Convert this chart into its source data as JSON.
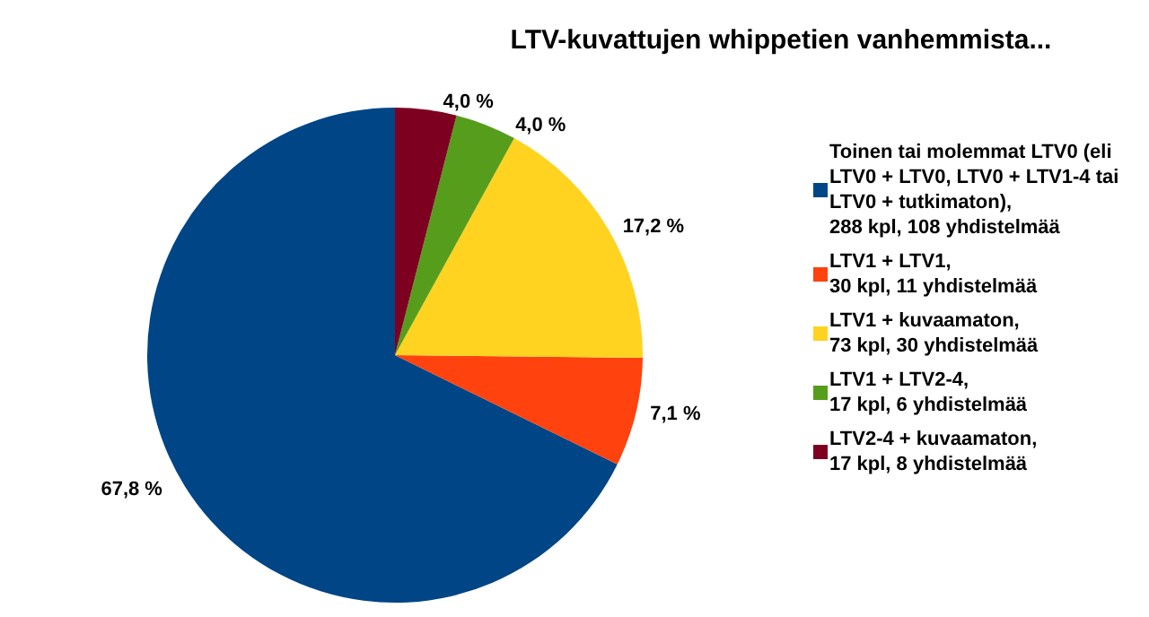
{
  "chart_data": {
    "type": "pie",
    "title": "LTV-kuvattujen whippetien vanhemmista...",
    "categories": [
      "Toinen tai molemmat LTV0 (eli\nLTV0 + LTV0, LTV0 + LTV1-4 tai\nLTV0 + tutkimaton),\n288 kpl, 108 yhdistelmää",
      "LTV1 + LTV1,\n30 kpl, 11 yhdistelmää",
      "LTV1 + kuvaamaton,\n73 kpl, 30 yhdistelmää",
      "LTV1 + LTV2-4,\n17 kpl, 6 yhdistelmää",
      "LTV2-4 + kuvaamaton,\n17 kpl, 8 yhdistelmää"
    ],
    "values": [
      67.8,
      7.1,
      17.2,
      4.0,
      4.0
    ],
    "value_labels": [
      "67,8 %",
      "7,1 %",
      "17,2 %",
      "4,0 %",
      "4,0 %"
    ],
    "colors": [
      "#004586",
      "#ff420e",
      "#ffd320",
      "#579d1c",
      "#7e0021"
    ],
    "legend": "right"
  }
}
